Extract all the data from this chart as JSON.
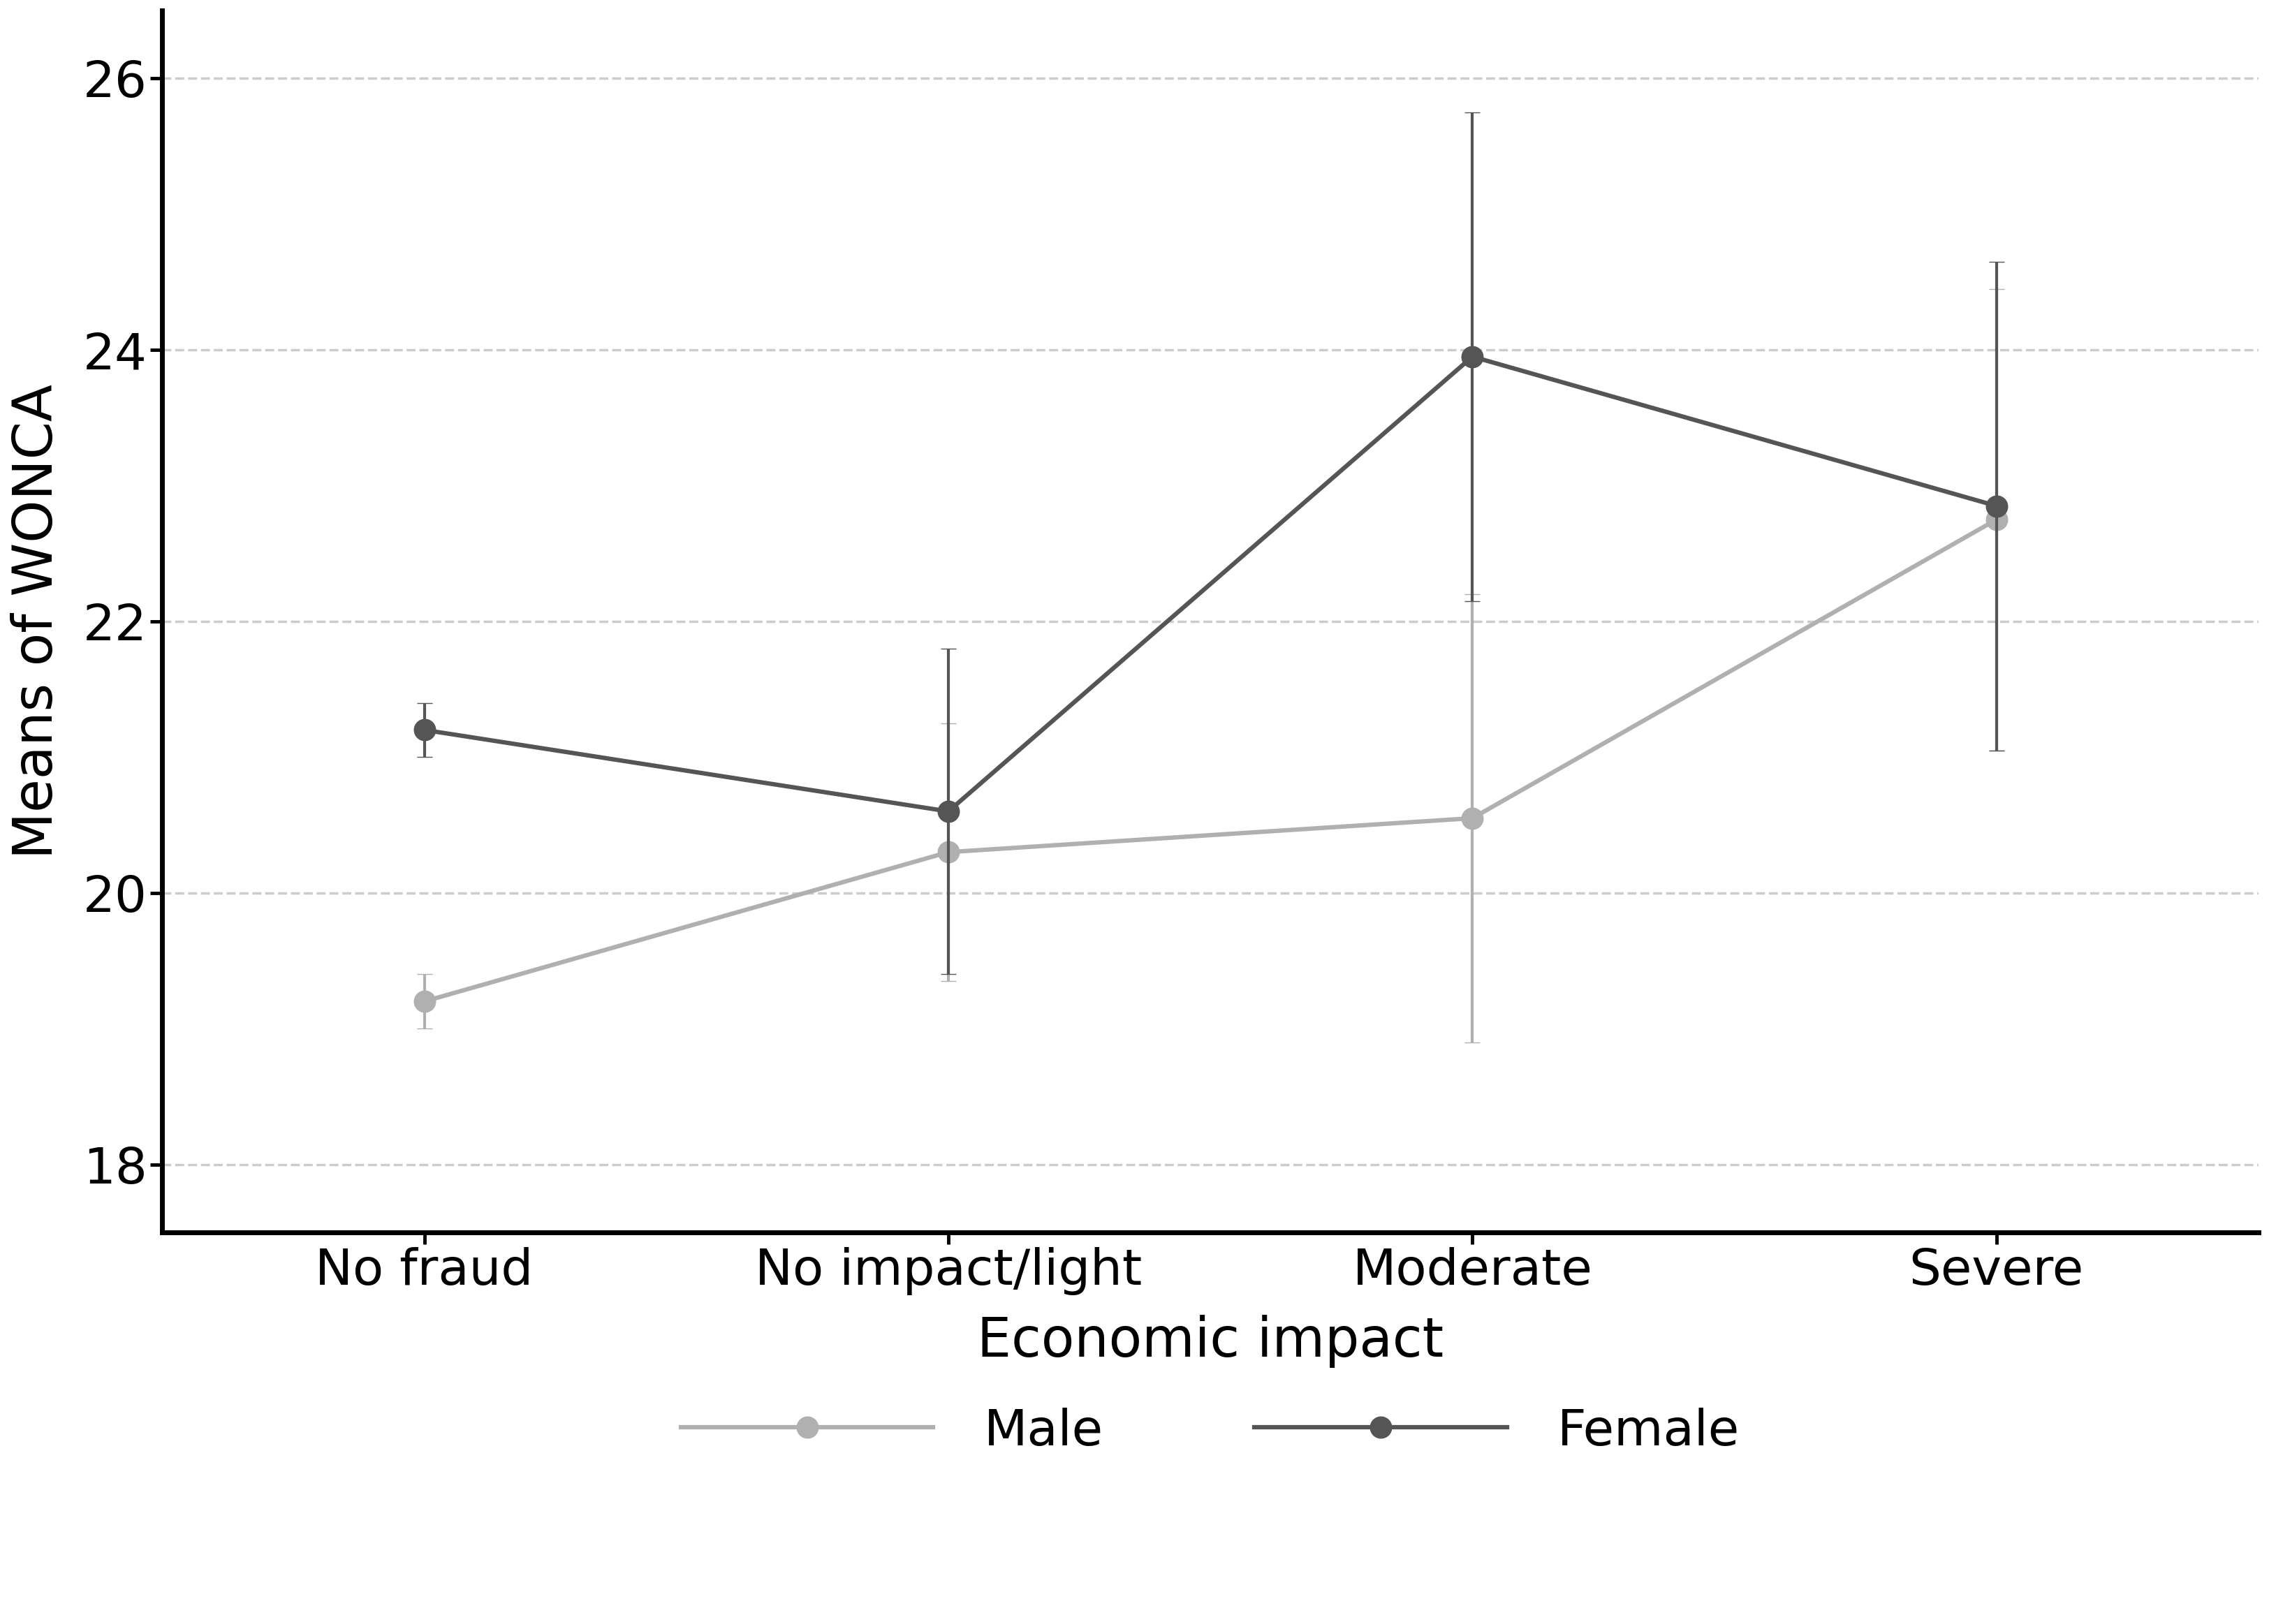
{
  "categories": [
    "No fraud",
    "No impact/light",
    "Moderate",
    "Severe"
  ],
  "x_positions": [
    0,
    1,
    2,
    3
  ],
  "male_means": [
    19.2,
    20.3,
    20.55,
    22.75
  ],
  "male_ci_lower": [
    19.0,
    19.35,
    18.9,
    21.05
  ],
  "male_ci_upper": [
    19.4,
    21.25,
    22.2,
    24.45
  ],
  "female_means": [
    21.2,
    20.6,
    23.95,
    22.85
  ],
  "female_ci_lower": [
    21.0,
    19.4,
    22.15,
    21.05
  ],
  "female_ci_upper": [
    21.4,
    21.8,
    25.75,
    24.65
  ],
  "male_color": "#b0b0b0",
  "female_color": "#555555",
  "ylabel": "Means of WONCA",
  "xlabel": "Economic impact",
  "ylim": [
    17.5,
    26.5
  ],
  "yticks": [
    18,
    20,
    22,
    24,
    26
  ],
  "background_color": "#ffffff",
  "grid_color": "#cccccc",
  "marker_size": 22,
  "line_width": 4.5,
  "capsize": 8,
  "elinewidth": 3.0,
  "ylabel_fontsize": 56,
  "xlabel_fontsize": 56,
  "tick_fontsize": 52,
  "legend_fontsize": 52,
  "spine_linewidth": 5.0
}
